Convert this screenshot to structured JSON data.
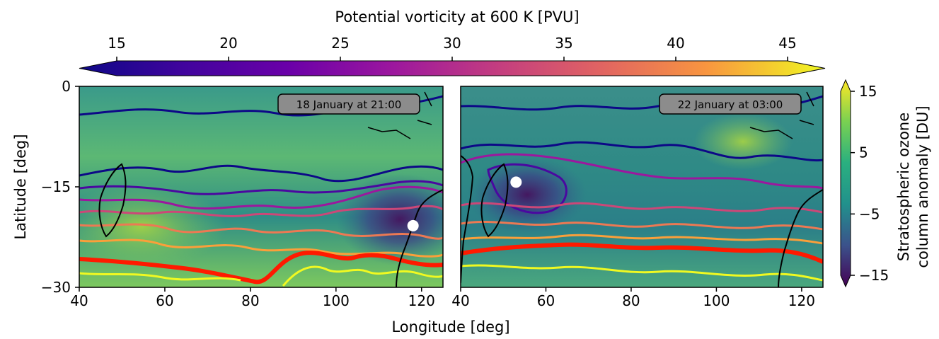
{
  "colorbar_top": {
    "label": "Potential vorticity at 600 K [PVU]",
    "ticks": [
      15,
      20,
      25,
      30,
      35,
      40,
      45
    ],
    "range": [
      13,
      47
    ],
    "colormap": "plasma",
    "extend": "both"
  },
  "colorbar_right": {
    "label_line1": "Stratospheric ozone",
    "label_line2": "column anomaly [DU]",
    "ticks": [
      "15",
      "5",
      "−5",
      "−15"
    ],
    "tick_values": [
      15,
      5,
      -5,
      -15
    ],
    "range": [
      -17,
      17
    ],
    "colormap": "viridis",
    "extend": "both"
  },
  "axes": {
    "xlabel": "Longitude [deg]",
    "ylabel": "Latitude [deg]",
    "x_ticks": [
      "40",
      "60",
      "80",
      "100",
      "120"
    ],
    "x_tick_values": [
      40,
      60,
      80,
      100,
      120
    ],
    "y_ticks": [
      "0",
      "−15",
      "−30"
    ],
    "y_tick_values": [
      0,
      -15,
      -30
    ],
    "xlim": [
      40,
      125
    ],
    "ylim": [
      -30,
      0
    ]
  },
  "chart_data": [
    {
      "type": "heatmap",
      "panel": "left",
      "timestamp": "18 January at 21:00",
      "marker": {
        "lon": 118,
        "lat": -20.8
      },
      "anomaly_center": {
        "lon": 115,
        "lat": -20
      },
      "contour_levels_pvu": [
        15,
        20,
        25,
        30,
        35,
        40,
        45
      ]
    },
    {
      "type": "heatmap",
      "panel": "right",
      "timestamp": "22 January at 03:00",
      "marker": {
        "lon": 53,
        "lat": -14.3
      },
      "anomaly_center": {
        "lon": 55,
        "lat": -16
      },
      "contour_levels_pvu": [
        15,
        20,
        25,
        30,
        35,
        40,
        45
      ]
    }
  ],
  "colors": {
    "pv_15": "#0d0887",
    "pv_20": "#5c01a6",
    "pv_25": "#9c179e",
    "pv_30": "#cc4778",
    "pv_35": "#ed7953",
    "pv_40": "#fb9f3a",
    "pv_45": "#f0f921",
    "pv_strong": "#ff1a00",
    "marker": "#ffffff",
    "badge_bg": "#8c8c8c"
  }
}
